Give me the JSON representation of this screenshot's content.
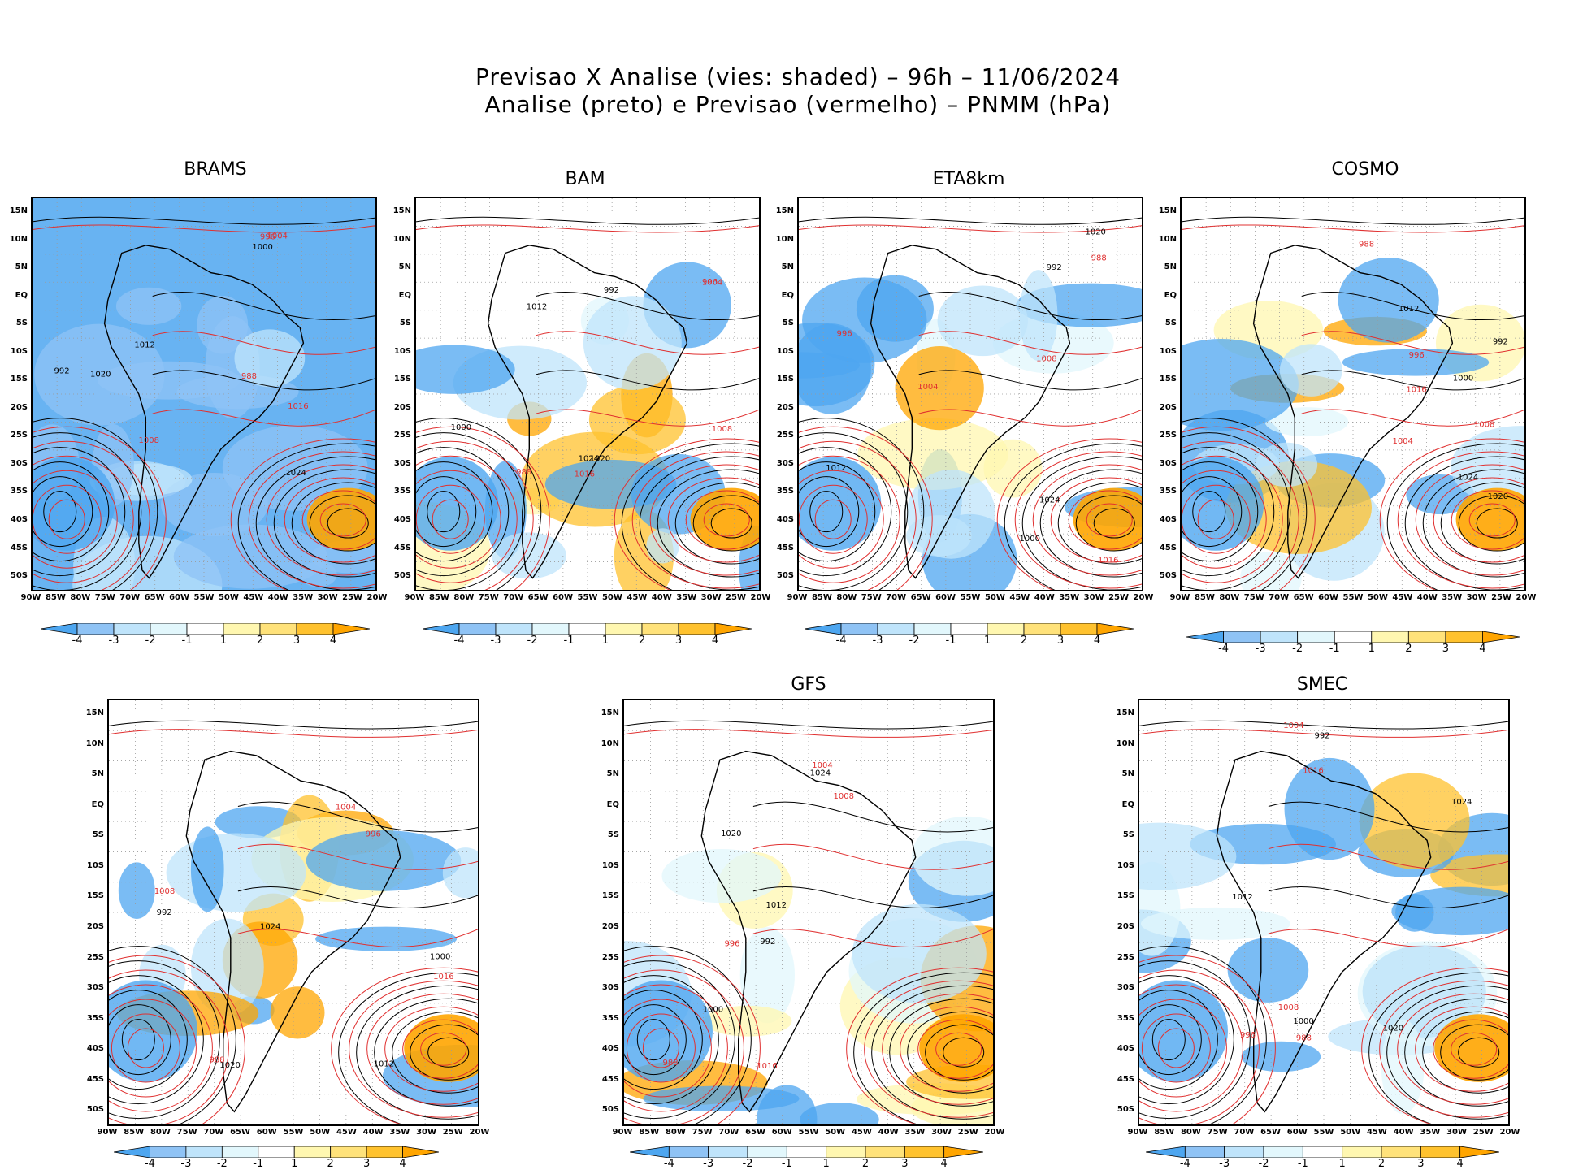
{
  "title_line1": "Previsao X Analise (vies: shaded) – 96h – 11/06/2024",
  "title_line2": "Analise (preto) e Previsao (vermelho) – PNMM (hPa)",
  "colorbar": {
    "labels": [
      "-4",
      "-3",
      "-2",
      "-1",
      "1",
      "2",
      "3",
      "4"
    ],
    "colors": [
      "#4da6f0",
      "#8fc3f5",
      "#bfe4fb",
      "#e2f7fc",
      "#ffffff",
      "#fff7b0",
      "#ffe27a",
      "#ffc22e",
      "#ffa500"
    ]
  },
  "y_ticks": [
    "15N",
    "10N",
    "5N",
    "EQ",
    "5S",
    "10S",
    "15S",
    "20S",
    "25S",
    "30S",
    "35S",
    "40S",
    "45S",
    "50S"
  ],
  "x_ticks": [
    "90W",
    "85W",
    "80W",
    "75W",
    "70W",
    "65W",
    "60W",
    "55W",
    "50W",
    "45W",
    "40W",
    "35W",
    "30W",
    "25W",
    "20W"
  ],
  "panels": [
    {
      "title": "BRAMS"
    },
    {
      "title": "BAM"
    },
    {
      "title": "ETA8km"
    },
    {
      "title": "COSMO"
    },
    {
      "title": ""
    },
    {
      "title": "GFS"
    },
    {
      "title": "SMEC"
    }
  ],
  "colors": {
    "analysis_contour": "#000000",
    "forecast_contour": "#e03030"
  },
  "contour_labels_sample": [
    "1016",
    "1012",
    "1008",
    "1020",
    "1004",
    "992",
    "988",
    "1000",
    "996",
    "1024"
  ]
}
